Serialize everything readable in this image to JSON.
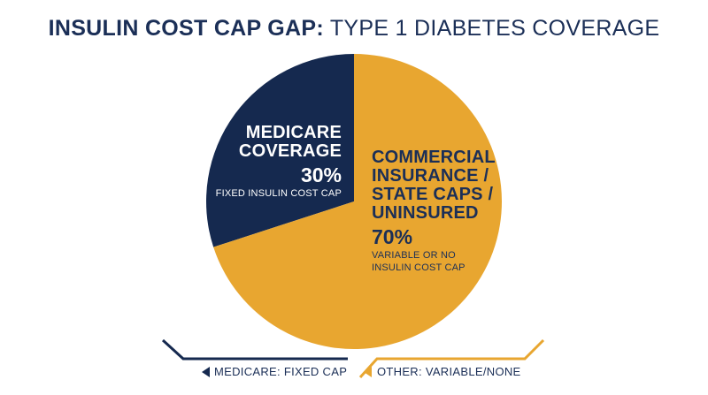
{
  "title": {
    "bold": "INSULIN COST CAP GAP:",
    "light": "TYPE 1 DIABETES COVERAGE"
  },
  "colors": {
    "medicare": "#15294f",
    "other": "#e8a630",
    "text": "#1b2f57"
  },
  "chart_data": {
    "type": "pie",
    "title": "INSULIN COST CAP GAP: TYPE 1 DIABETES COVERAGE",
    "slices": [
      {
        "name_lines": [
          "MEDICARE",
          "COVERAGE"
        ],
        "value": 30,
        "value_label": "30%",
        "sub_lines": [
          "FIXED INSULIN COST CAP"
        ],
        "color": "#15294f"
      },
      {
        "name_lines": [
          "COMMERCIAL",
          "INSURANCE /",
          "STATE CAPS /",
          "UNINSURED"
        ],
        "value": 70,
        "value_label": "70%",
        "sub_lines": [
          "VARIABLE OR NO",
          "INSULIN COST CAP"
        ],
        "color": "#e8a630"
      }
    ],
    "legend": [
      {
        "label": "MEDICARE: FIXED CAP",
        "color": "#15294f"
      },
      {
        "label": "OTHER: VARIABLE/NONE",
        "color": "#e8a630"
      }
    ],
    "legend_position": "bottom"
  }
}
